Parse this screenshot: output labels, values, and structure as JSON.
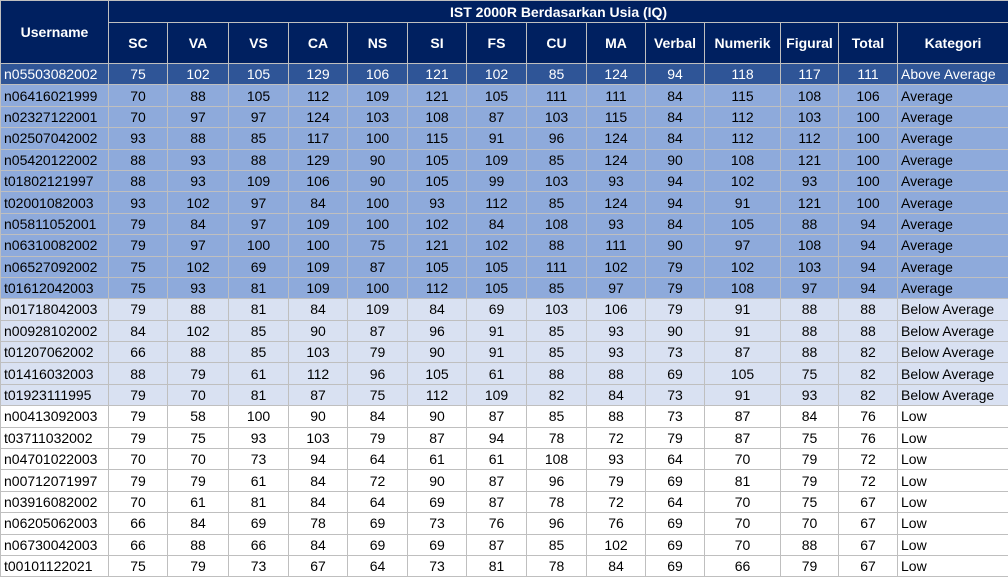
{
  "header": {
    "username": "Username",
    "title": "IST 2000R Berdasarkan Usia (IQ)",
    "columns": [
      "SC",
      "VA",
      "VS",
      "CA",
      "NS",
      "SI",
      "FS",
      "CU",
      "MA",
      "Verbal",
      "Numerik",
      "Figural",
      "Total",
      "Kategori"
    ],
    "fill": "#002060",
    "text_color": "#ffffff"
  },
  "rows": [
    {
      "username": "n05503082002",
      "scores": [
        75,
        102,
        105,
        129,
        106,
        121,
        102,
        85,
        124,
        94,
        118,
        117,
        111
      ],
      "kategori": "Above Average",
      "fill": "#2f5597",
      "text_color": "#ffffff"
    },
    {
      "username": "n06416021999",
      "scores": [
        70,
        88,
        105,
        112,
        109,
        121,
        105,
        111,
        111,
        84,
        115,
        108,
        106
      ],
      "kategori": "Average",
      "fill": "#8eaadb",
      "text_color": "#000000"
    },
    {
      "username": "n02327122001",
      "scores": [
        70,
        97,
        97,
        124,
        103,
        108,
        87,
        103,
        115,
        84,
        112,
        103,
        100
      ],
      "kategori": "Average",
      "fill": "#8eaadb",
      "text_color": "#000000"
    },
    {
      "username": "n02507042002",
      "scores": [
        93,
        88,
        85,
        117,
        100,
        115,
        91,
        96,
        124,
        84,
        112,
        112,
        100
      ],
      "kategori": "Average",
      "fill": "#8eaadb",
      "text_color": "#000000"
    },
    {
      "username": "n05420122002",
      "scores": [
        88,
        93,
        88,
        129,
        90,
        105,
        109,
        85,
        124,
        90,
        108,
        121,
        100
      ],
      "kategori": "Average",
      "fill": "#8eaadb",
      "text_color": "#000000"
    },
    {
      "username": "t01802121997",
      "scores": [
        88,
        93,
        109,
        106,
        90,
        105,
        99,
        103,
        93,
        94,
        102,
        93,
        100
      ],
      "kategori": "Average",
      "fill": "#8eaadb",
      "text_color": "#000000"
    },
    {
      "username": "t02001082003",
      "scores": [
        93,
        102,
        97,
        84,
        100,
        93,
        112,
        85,
        124,
        94,
        91,
        121,
        100
      ],
      "kategori": "Average",
      "fill": "#8eaadb",
      "text_color": "#000000"
    },
    {
      "username": "n05811052001",
      "scores": [
        79,
        84,
        97,
        109,
        100,
        102,
        84,
        108,
        93,
        84,
        105,
        88,
        94
      ],
      "kategori": "Average",
      "fill": "#8eaadb",
      "text_color": "#000000"
    },
    {
      "username": "n06310082002",
      "scores": [
        79,
        97,
        100,
        100,
        75,
        121,
        102,
        88,
        111,
        90,
        97,
        108,
        94
      ],
      "kategori": "Average",
      "fill": "#8eaadb",
      "text_color": "#000000"
    },
    {
      "username": "n06527092002",
      "scores": [
        75,
        102,
        69,
        109,
        87,
        105,
        105,
        111,
        102,
        79,
        102,
        103,
        94
      ],
      "kategori": "Average",
      "fill": "#8eaadb",
      "text_color": "#000000"
    },
    {
      "username": "t01612042003",
      "scores": [
        75,
        93,
        81,
        109,
        100,
        112,
        105,
        85,
        97,
        79,
        108,
        97,
        94
      ],
      "kategori": "Average",
      "fill": "#8eaadb",
      "text_color": "#000000"
    },
    {
      "username": "n01718042003",
      "scores": [
        79,
        88,
        81,
        84,
        109,
        84,
        69,
        103,
        106,
        79,
        91,
        88,
        88
      ],
      "kategori": "Below Average",
      "fill": "#d9e1f2",
      "text_color": "#000000"
    },
    {
      "username": "n00928102002",
      "scores": [
        84,
        102,
        85,
        90,
        87,
        96,
        91,
        85,
        93,
        90,
        91,
        88,
        88
      ],
      "kategori": "Below Average",
      "fill": "#d9e1f2",
      "text_color": "#000000"
    },
    {
      "username": "t01207062002",
      "scores": [
        66,
        88,
        85,
        103,
        79,
        90,
        91,
        85,
        93,
        73,
        87,
        88,
        82
      ],
      "kategori": "Below Average",
      "fill": "#d9e1f2",
      "text_color": "#000000"
    },
    {
      "username": "t01416032003",
      "scores": [
        88,
        79,
        61,
        112,
        96,
        105,
        61,
        88,
        88,
        69,
        105,
        75,
        82
      ],
      "kategori": "Below Average",
      "fill": "#d9e1f2",
      "text_color": "#000000"
    },
    {
      "username": "t01923111995",
      "scores": [
        79,
        70,
        81,
        87,
        75,
        112,
        109,
        82,
        84,
        73,
        91,
        93,
        82
      ],
      "kategori": "Below Average",
      "fill": "#d9e1f2",
      "text_color": "#000000"
    },
    {
      "username": "n00413092003",
      "scores": [
        79,
        58,
        100,
        90,
        84,
        90,
        87,
        85,
        88,
        73,
        87,
        84,
        76
      ],
      "kategori": "Low",
      "fill": "#ffffff",
      "text_color": "#000000"
    },
    {
      "username": "t03711032002",
      "scores": [
        79,
        75,
        93,
        103,
        79,
        87,
        94,
        78,
        72,
        79,
        87,
        75,
        76
      ],
      "kategori": "Low",
      "fill": "#ffffff",
      "text_color": "#000000"
    },
    {
      "username": "n04701022003",
      "scores": [
        70,
        70,
        73,
        94,
        64,
        61,
        61,
        108,
        93,
        64,
        70,
        79,
        72
      ],
      "kategori": "Low",
      "fill": "#ffffff",
      "text_color": "#000000"
    },
    {
      "username": "n00712071997",
      "scores": [
        79,
        79,
        61,
        84,
        72,
        90,
        87,
        96,
        79,
        69,
        81,
        79,
        72
      ],
      "kategori": "Low",
      "fill": "#ffffff",
      "text_color": "#000000"
    },
    {
      "username": "n03916082002",
      "scores": [
        70,
        61,
        81,
        84,
        64,
        69,
        87,
        78,
        72,
        64,
        70,
        75,
        67
      ],
      "kategori": "Low",
      "fill": "#ffffff",
      "text_color": "#000000"
    },
    {
      "username": "n06205062003",
      "scores": [
        66,
        84,
        69,
        78,
        69,
        73,
        76,
        96,
        76,
        69,
        70,
        70,
        67
      ],
      "kategori": "Low",
      "fill": "#ffffff",
      "text_color": "#000000"
    },
    {
      "username": "n06730042003",
      "scores": [
        66,
        88,
        66,
        84,
        69,
        69,
        87,
        85,
        102,
        69,
        70,
        88,
        67
      ],
      "kategori": "Low",
      "fill": "#ffffff",
      "text_color": "#000000"
    },
    {
      "username": "t00101122021",
      "scores": [
        75,
        79,
        73,
        67,
        64,
        73,
        81,
        78,
        84,
        69,
        66,
        79,
        67
      ],
      "kategori": "Low",
      "fill": "#ffffff",
      "text_color": "#000000"
    }
  ]
}
